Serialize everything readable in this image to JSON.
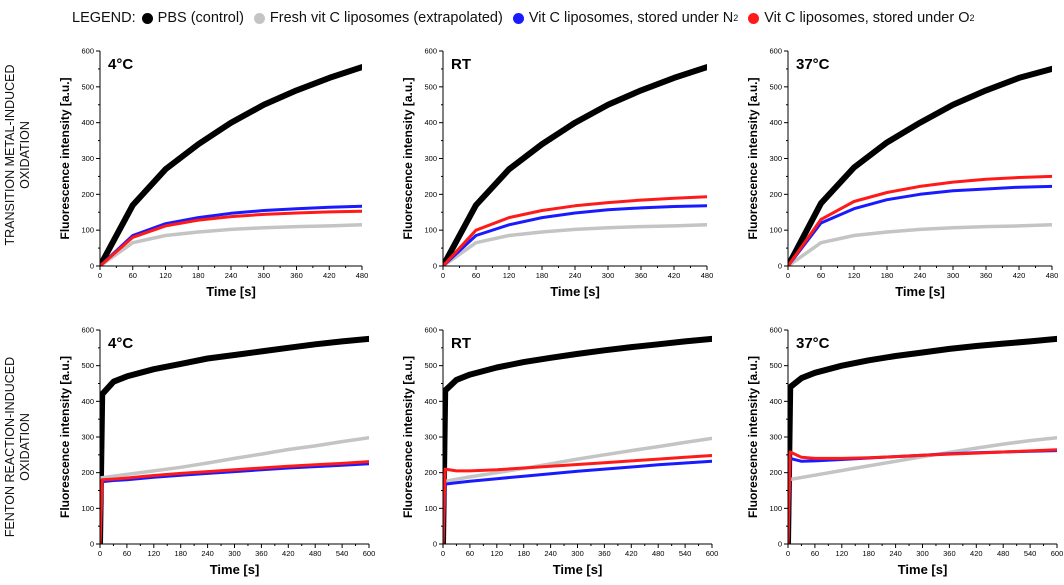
{
  "legend": {
    "title": "LEGEND:",
    "items": [
      {
        "label": "PBS (control)",
        "sub": "",
        "color": "#000000"
      },
      {
        "label": "Fresh vit C liposomes (extrapolated)",
        "sub": "",
        "color": "#c4c4c4"
      },
      {
        "label": "Vit C liposomes, stored under N",
        "sub": "2",
        "color": "#1a1aff"
      },
      {
        "label": "Vit C liposomes, stored under O",
        "sub": "2",
        "color": "#ff1a1a"
      }
    ]
  },
  "row_labels": {
    "top": [
      "TRANSITION METAL-INDUCED",
      "OXIDATION"
    ],
    "bottom": [
      "FENTON REACTION-INDUCED",
      "OXIDATION"
    ]
  },
  "colors": {
    "pbs": "#000000",
    "fresh": "#c4c4c4",
    "n2": "#1a1aff",
    "o2": "#ff1a1a"
  },
  "chart_data": [
    {
      "type": "line",
      "panel_label": "4°C",
      "xlabel": "Time [s]",
      "ylabel": "Fluorescence intensity [a.u.]",
      "xlim": [
        0,
        480
      ],
      "ylim": [
        0,
        600
      ],
      "xticks": [
        0,
        60,
        120,
        180,
        240,
        300,
        360,
        420,
        480
      ],
      "yticks": [
        0,
        100,
        200,
        300,
        400,
        500,
        600
      ],
      "series": [
        {
          "name": "PBS (control)",
          "x": [
            0,
            60,
            120,
            180,
            240,
            300,
            360,
            420,
            480
          ],
          "y": [
            0,
            170,
            270,
            340,
            400,
            450,
            490,
            525,
            555
          ]
        },
        {
          "name": "Fresh vit C liposomes (extrapolated)",
          "x": [
            0,
            60,
            120,
            180,
            240,
            300,
            360,
            420,
            480
          ],
          "y": [
            0,
            65,
            85,
            95,
            102,
            107,
            110,
            112,
            115
          ]
        },
        {
          "name": "Vit C liposomes, stored under N2",
          "x": [
            0,
            60,
            120,
            180,
            240,
            300,
            360,
            420,
            480
          ],
          "y": [
            0,
            85,
            118,
            135,
            147,
            155,
            160,
            164,
            167
          ]
        },
        {
          "name": "Vit C liposomes, stored under O2",
          "x": [
            0,
            60,
            120,
            180,
            240,
            300,
            360,
            420,
            480
          ],
          "y": [
            0,
            80,
            112,
            128,
            138,
            144,
            148,
            151,
            153
          ]
        }
      ]
    },
    {
      "type": "line",
      "panel_label": "RT",
      "xlabel": "Time [s]",
      "ylabel": "Fluorescence intensity [a.u.]",
      "xlim": [
        0,
        480
      ],
      "ylim": [
        0,
        600
      ],
      "xticks": [
        0,
        60,
        120,
        180,
        240,
        300,
        360,
        420,
        480
      ],
      "yticks": [
        0,
        100,
        200,
        300,
        400,
        500,
        600
      ],
      "series": [
        {
          "name": "PBS (control)",
          "x": [
            0,
            60,
            120,
            180,
            240,
            300,
            360,
            420,
            480
          ],
          "y": [
            0,
            170,
            270,
            340,
            400,
            450,
            490,
            525,
            555
          ]
        },
        {
          "name": "Fresh vit C liposomes (extrapolated)",
          "x": [
            0,
            60,
            120,
            180,
            240,
            300,
            360,
            420,
            480
          ],
          "y": [
            0,
            65,
            85,
            95,
            102,
            107,
            110,
            112,
            115
          ]
        },
        {
          "name": "Vit C liposomes, stored under N2",
          "x": [
            0,
            60,
            120,
            180,
            240,
            300,
            360,
            420,
            480
          ],
          "y": [
            0,
            85,
            115,
            135,
            148,
            157,
            162,
            166,
            168
          ]
        },
        {
          "name": "Vit C liposomes, stored under O2",
          "x": [
            0,
            60,
            120,
            180,
            240,
            300,
            360,
            420,
            480
          ],
          "y": [
            0,
            100,
            135,
            155,
            168,
            177,
            184,
            189,
            193
          ]
        }
      ]
    },
    {
      "type": "line",
      "panel_label": "37°C",
      "xlabel": "Time [s]",
      "ylabel": "Fluorescence intensity [a.u.]",
      "xlim": [
        0,
        480
      ],
      "ylim": [
        0,
        600
      ],
      "xticks": [
        0,
        60,
        120,
        180,
        240,
        300,
        360,
        420,
        480
      ],
      "yticks": [
        0,
        100,
        200,
        300,
        400,
        500,
        600
      ],
      "series": [
        {
          "name": "PBS (control)",
          "x": [
            0,
            60,
            120,
            180,
            240,
            300,
            360,
            420,
            480
          ],
          "y": [
            0,
            175,
            275,
            345,
            400,
            450,
            490,
            525,
            550
          ]
        },
        {
          "name": "Fresh vit C liposomes (extrapolated)",
          "x": [
            0,
            60,
            120,
            180,
            240,
            300,
            360,
            420,
            480
          ],
          "y": [
            0,
            65,
            85,
            95,
            102,
            107,
            110,
            112,
            115
          ]
        },
        {
          "name": "Vit C liposomes, stored under N2",
          "x": [
            0,
            60,
            120,
            180,
            240,
            300,
            360,
            420,
            480
          ],
          "y": [
            0,
            120,
            160,
            185,
            200,
            210,
            215,
            220,
            222
          ]
        },
        {
          "name": "Vit C liposomes, stored under O2",
          "x": [
            0,
            60,
            120,
            180,
            240,
            300,
            360,
            420,
            480
          ],
          "y": [
            0,
            130,
            180,
            205,
            222,
            234,
            242,
            247,
            250
          ]
        }
      ]
    },
    {
      "type": "line",
      "panel_label": "4°C",
      "xlabel": "Time [s]",
      "ylabel": "Fluorescence intensity [a.u.]",
      "xlim": [
        0,
        600
      ],
      "ylim": [
        0,
        600
      ],
      "xticks": [
        0,
        60,
        120,
        180,
        240,
        300,
        360,
        420,
        480,
        540,
        600
      ],
      "yticks": [
        0,
        100,
        200,
        300,
        400,
        500,
        600
      ],
      "series": [
        {
          "name": "PBS (control)",
          "x": [
            0,
            5,
            30,
            60,
            120,
            180,
            240,
            300,
            360,
            420,
            480,
            540,
            600
          ],
          "y": [
            0,
            420,
            455,
            470,
            490,
            505,
            520,
            530,
            540,
            550,
            560,
            568,
            575
          ]
        },
        {
          "name": "Fresh vit C liposomes (extrapolated)",
          "x": [
            0,
            60,
            120,
            180,
            240,
            300,
            360,
            420,
            480,
            540,
            600
          ],
          "y": [
            185,
            195,
            205,
            215,
            227,
            240,
            252,
            265,
            275,
            287,
            298
          ]
        },
        {
          "name": "Vit C liposomes, stored under N2",
          "x": [
            0,
            5,
            30,
            60,
            120,
            180,
            240,
            300,
            360,
            420,
            480,
            540,
            600
          ],
          "y": [
            0,
            175,
            178,
            180,
            187,
            193,
            198,
            203,
            208,
            213,
            217,
            221,
            225
          ]
        },
        {
          "name": "Vit C liposomes, stored under O2",
          "x": [
            0,
            5,
            30,
            60,
            120,
            180,
            240,
            300,
            360,
            420,
            480,
            540,
            600
          ],
          "y": [
            0,
            180,
            182,
            185,
            192,
            198,
            203,
            208,
            213,
            218,
            222,
            226,
            231
          ]
        }
      ]
    },
    {
      "type": "line",
      "panel_label": "RT",
      "xlabel": "Time [s]",
      "ylabel": "Fluorescence intensity [a.u.]",
      "xlim": [
        0,
        600
      ],
      "ylim": [
        0,
        600
      ],
      "xticks": [
        0,
        60,
        120,
        180,
        240,
        300,
        360,
        420,
        480,
        540,
        600
      ],
      "yticks": [
        0,
        100,
        200,
        300,
        400,
        500,
        600
      ],
      "series": [
        {
          "name": "PBS (control)",
          "x": [
            0,
            5,
            30,
            60,
            120,
            180,
            240,
            300,
            360,
            420,
            480,
            540,
            600
          ],
          "y": [
            0,
            430,
            460,
            475,
            495,
            510,
            522,
            533,
            543,
            552,
            560,
            568,
            575
          ]
        },
        {
          "name": "Fresh vit C liposomes (extrapolated)",
          "x": [
            0,
            60,
            120,
            180,
            240,
            300,
            360,
            420,
            480,
            540,
            600
          ],
          "y": [
            175,
            188,
            200,
            212,
            225,
            238,
            250,
            262,
            273,
            285,
            296
          ]
        },
        {
          "name": "Vit C liposomes, stored under N2",
          "x": [
            0,
            5,
            30,
            60,
            120,
            180,
            240,
            300,
            360,
            420,
            480,
            540,
            600
          ],
          "y": [
            0,
            168,
            172,
            176,
            183,
            190,
            197,
            204,
            210,
            216,
            222,
            227,
            232
          ]
        },
        {
          "name": "Vit C liposomes, stored under O2",
          "x": [
            0,
            5,
            30,
            60,
            120,
            180,
            240,
            300,
            360,
            420,
            480,
            540,
            600
          ],
          "y": [
            0,
            210,
            205,
            205,
            208,
            213,
            218,
            223,
            228,
            233,
            238,
            243,
            248
          ]
        }
      ]
    },
    {
      "type": "line",
      "panel_label": "37°C",
      "xlabel": "Time [s]",
      "ylabel": "Fluorescence intensity [a.u.]",
      "xlim": [
        0,
        600
      ],
      "ylim": [
        0,
        600
      ],
      "xticks": [
        0,
        60,
        120,
        180,
        240,
        300,
        360,
        420,
        480,
        540,
        600
      ],
      "yticks": [
        0,
        100,
        200,
        300,
        400,
        500,
        600
      ],
      "series": [
        {
          "name": "PBS (control)",
          "x": [
            0,
            5,
            30,
            60,
            120,
            180,
            240,
            300,
            360,
            420,
            480,
            540,
            600
          ],
          "y": [
            0,
            440,
            465,
            480,
            500,
            515,
            527,
            537,
            547,
            555,
            562,
            568,
            575
          ]
        },
        {
          "name": "Fresh vit C liposomes (extrapolated)",
          "x": [
            0,
            60,
            120,
            180,
            240,
            300,
            360,
            420,
            480,
            540,
            600
          ],
          "y": [
            180,
            193,
            206,
            219,
            232,
            245,
            257,
            269,
            280,
            290,
            298
          ]
        },
        {
          "name": "Vit C liposomes, stored under N2",
          "x": [
            0,
            5,
            30,
            60,
            120,
            180,
            240,
            300,
            360,
            420,
            480,
            540,
            600
          ],
          "y": [
            0,
            240,
            232,
            233,
            237,
            241,
            245,
            249,
            253,
            256,
            258,
            260,
            262
          ]
        },
        {
          "name": "Vit C liposomes, stored under O2",
          "x": [
            0,
            5,
            30,
            60,
            120,
            180,
            240,
            300,
            360,
            420,
            480,
            540,
            600
          ],
          "y": [
            0,
            258,
            243,
            240,
            240,
            242,
            245,
            249,
            252,
            255,
            258,
            261,
            264
          ]
        }
      ]
    }
  ]
}
